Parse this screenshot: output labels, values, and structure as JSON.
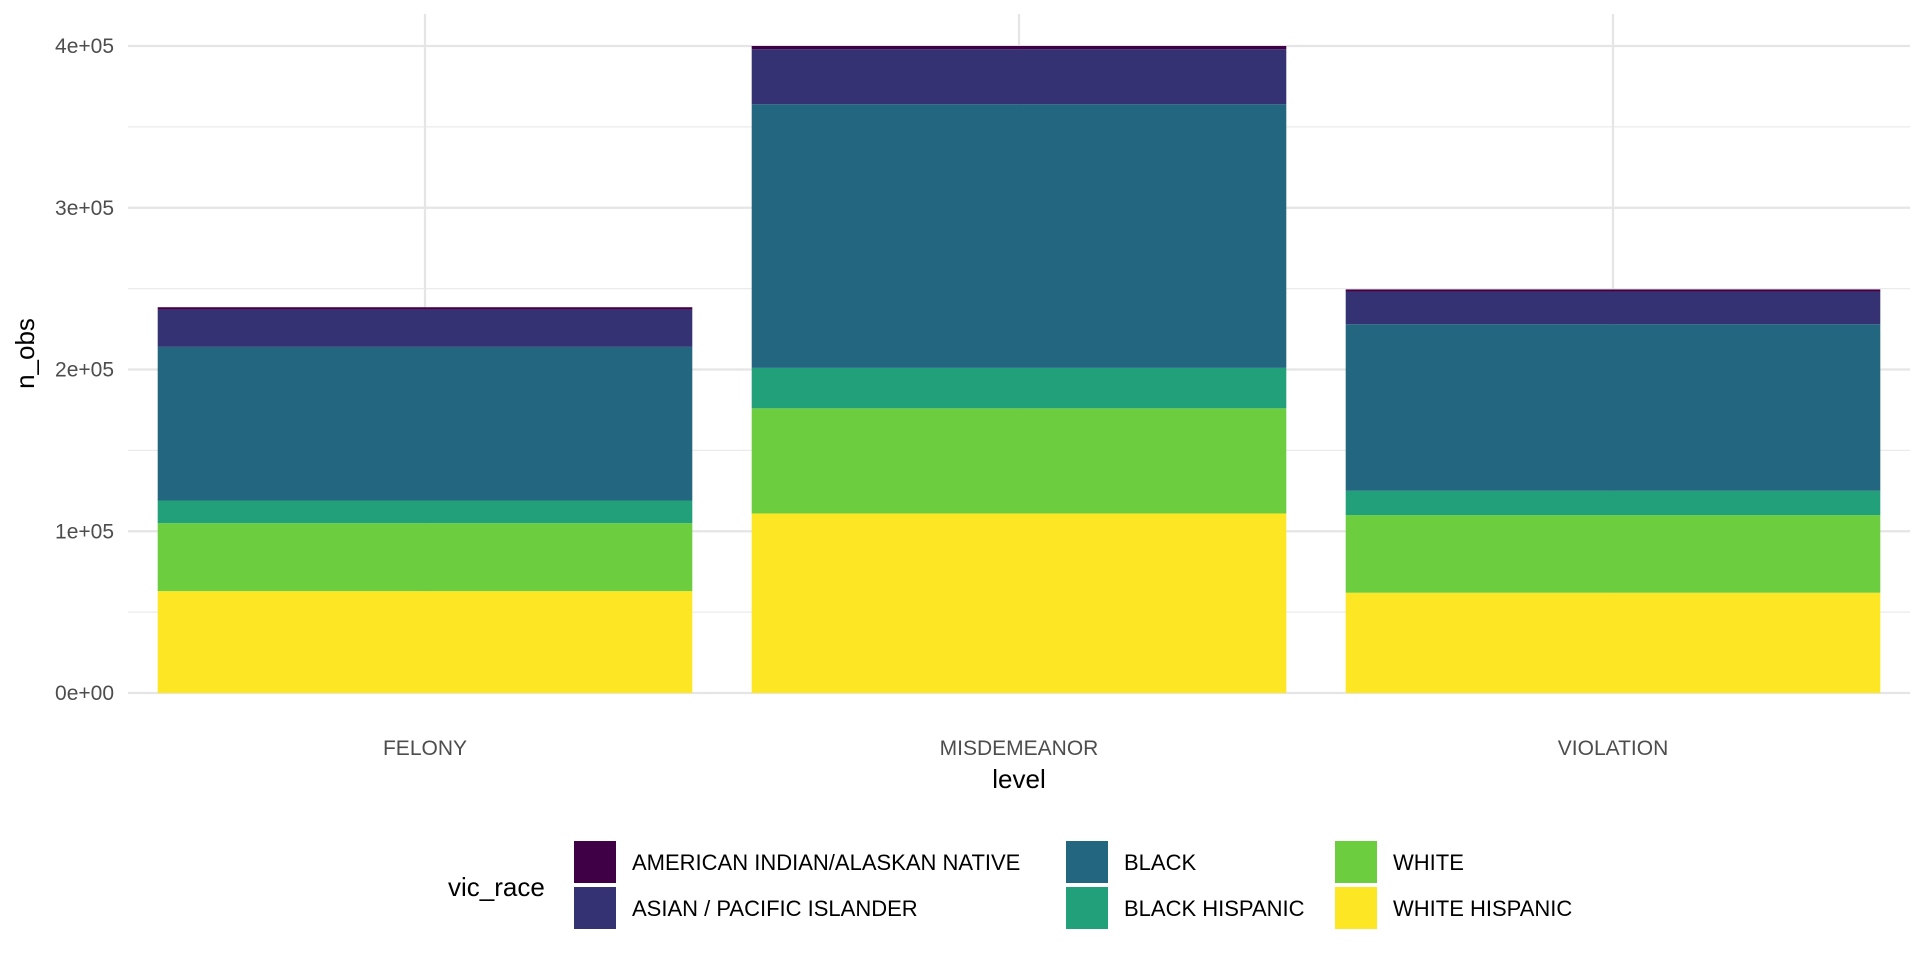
{
  "chart_data": {
    "type": "bar",
    "stacked": true,
    "categories": [
      "FELONY",
      "MISDEMEANOR",
      "VIOLATION"
    ],
    "series": [
      {
        "name": "WHITE HISPANIC",
        "color": "#FDE725",
        "values": [
          63000,
          111000,
          62000
        ]
      },
      {
        "name": "WHITE",
        "color": "#6CCE3F",
        "values": [
          42000,
          65000,
          48000
        ]
      },
      {
        "name": "BLACK HISPANIC",
        "color": "#22A07A",
        "values": [
          14000,
          25000,
          15000
        ]
      },
      {
        "name": "BLACK",
        "color": "#236680",
        "values": [
          95000,
          163000,
          103000
        ]
      },
      {
        "name": "ASIAN / PACIFIC ISLANDER",
        "color": "#353274",
        "values": [
          23000,
          34000,
          20000
        ]
      },
      {
        "name": "AMERICAN INDIAN/ALASKAN NATIVE",
        "color": "#3F0046",
        "values": [
          1500,
          2000,
          1500
        ]
      }
    ],
    "legend_order": [
      "AMERICAN INDIAN/ALASKAN NATIVE",
      "ASIAN / PACIFIC ISLANDER",
      "BLACK",
      "BLACK HISPANIC",
      "WHITE",
      "WHITE HISPANIC"
    ],
    "xlabel": "level",
    "ylabel": "n_obs",
    "legend_title": "vic_race",
    "legend_position": "bottom",
    "ylim": [
      0,
      400000
    ],
    "yticks": [
      0,
      100000,
      200000,
      300000,
      400000
    ],
    "ytick_labels": [
      "0e+00",
      "1e+05",
      "2e+05",
      "3e+05",
      "4e+05"
    ],
    "grid": true
  }
}
